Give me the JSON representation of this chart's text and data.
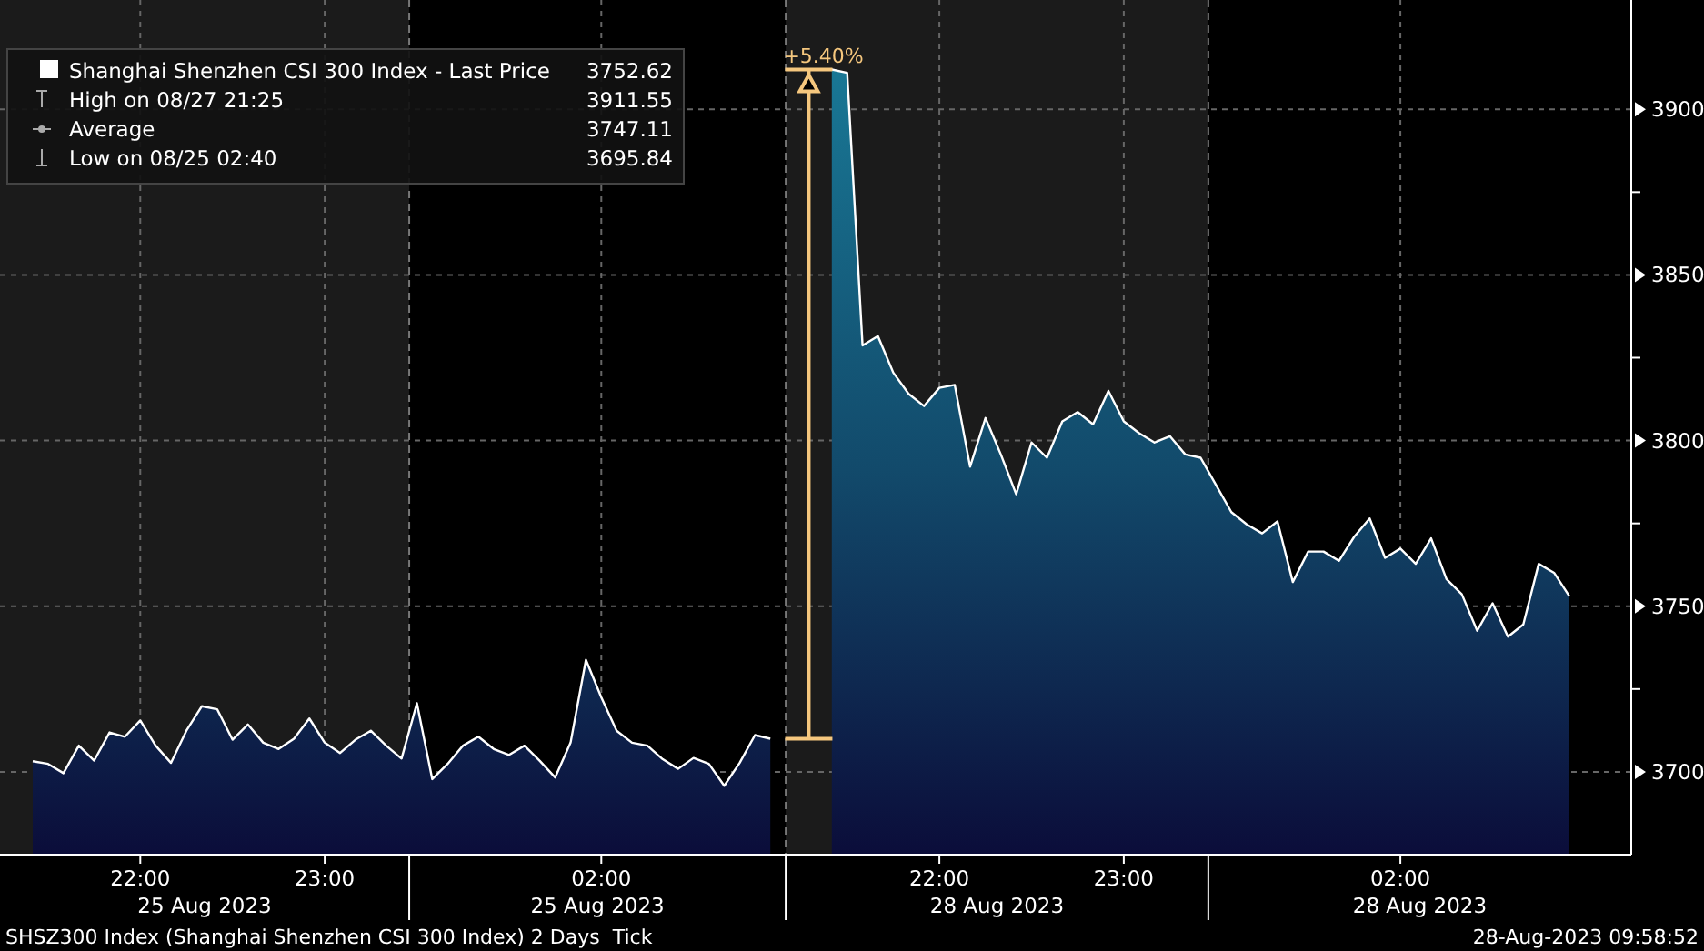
{
  "chart_data": {
    "type": "area",
    "series": [
      {
        "name": "Shanghai Shenzhen CSI 300 Index - Last Price",
        "color": "#ffffff",
        "values": [
          3703.2,
          3702.4,
          3699.6,
          3707.9,
          3703.4,
          3711.9,
          3710.6,
          3715.5,
          3707.9,
          3702.7,
          3712.4,
          3719.8,
          3718.9,
          3709.7,
          3714.3,
          3708.8,
          3706.9,
          3710,
          3716.1,
          3708.8,
          3705.7,
          3709.7,
          3712.4,
          3707.9,
          3704,
          3720.7,
          3697.8,
          3702.4,
          3707.9,
          3710.6,
          3706.9,
          3705.1,
          3707.9,
          3703.3,
          3698.3,
          3708.8,
          3733.8,
          3722.5,
          3712.4,
          3708.8,
          3707.9,
          3703.8,
          3700.9,
          3704.2,
          3702.4,
          3695.8,
          3702.7,
          3711.1,
          3710.0,
          null,
          null,
          null,
          3912,
          3911,
          3828.7,
          3831.5,
          3820.5,
          3814.1,
          3810.4,
          3815.9,
          3816.8,
          3792.1,
          3806.8,
          3795.8,
          3783.8,
          3799.4,
          3794.8,
          3805.8,
          3808.6,
          3804.9,
          3815.0,
          3805.8,
          3802.2,
          3799.4,
          3801.3,
          3795.8,
          3794.8,
          3786.6,
          3778.4,
          3774.7,
          3772.0,
          3775.6,
          3757.3,
          3766.5,
          3766.5,
          3763.7,
          3771.0,
          3776.5,
          3764.6,
          3767.4,
          3762.8,
          3770.5,
          3758.2,
          3753.6,
          3742.6,
          3750.9,
          3740.8,
          3744.5,
          3762.8,
          3760.1,
          3753
        ]
      }
    ],
    "categories": [
      null,
      null,
      null,
      null,
      null,
      null,
      null,
      "22:00",
      null,
      null,
      null,
      null,
      null,
      null,
      null,
      null,
      null,
      null,
      null,
      "23:00",
      null,
      null,
      null,
      null,
      null,
      null,
      null,
      null,
      null,
      null,
      null,
      null,
      null,
      null,
      null,
      null,
      null,
      "02:00",
      null,
      null,
      null,
      null,
      null,
      null,
      null,
      null,
      null,
      null,
      null,
      null,
      null,
      null,
      null,
      null,
      null,
      null,
      null,
      null,
      null,
      "22:00",
      null,
      null,
      null,
      null,
      null,
      null,
      null,
      null,
      null,
      null,
      null,
      "23:00",
      null,
      null,
      null,
      null,
      null,
      null,
      null,
      null,
      null,
      null,
      null,
      null,
      null,
      null,
      null,
      null,
      null,
      "02:00",
      null,
      null,
      null,
      null,
      null,
      null,
      null,
      null,
      null,
      null,
      null
    ],
    "ylim": [
      3675,
      3933
    ],
    "yticks": [
      3700,
      3750,
      3800,
      3850,
      3900
    ],
    "grid": true,
    "legend": "top left",
    "annotations": [
      "+5.40%",
      "25 Aug 2023",
      "25 Aug 2023",
      "28 Aug 2023",
      "28 Aug 2023",
      "3752.62",
      "High on 08/27 21:25",
      "3911.55",
      "Average",
      "3747.11",
      "Low on 08/25 02:40",
      "3695.84",
      "SHSZ300 Index (Shanghai Shenzhen CSI 300 Index) 2 Days  Tick",
      "28-Aug-2023 09:58:52"
    ]
  }
}
